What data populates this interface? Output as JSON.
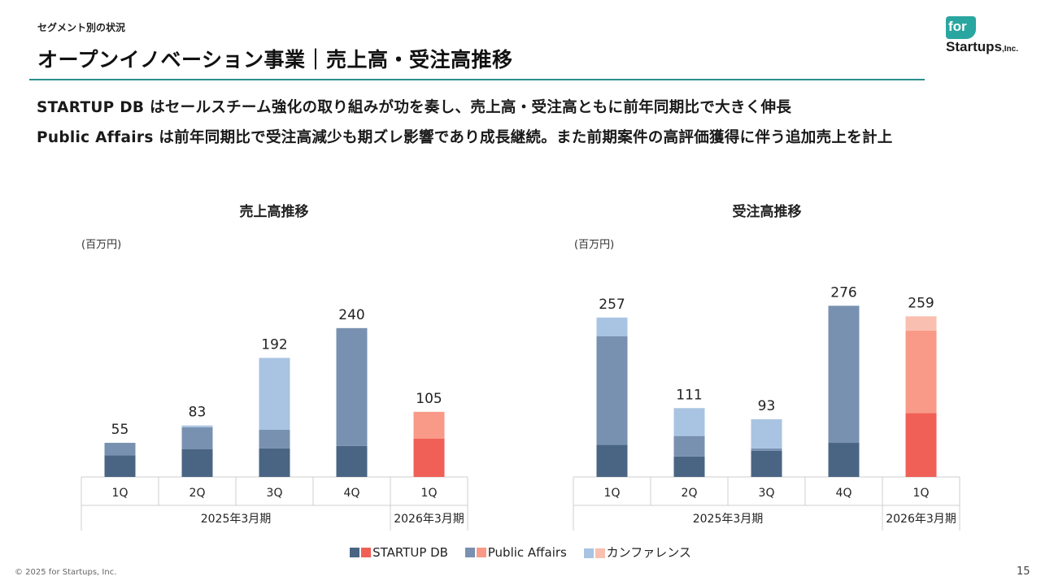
{
  "header": {
    "section": "セグメント別の状況",
    "title": "オープンイノベーション事業｜売上高・受注高推移"
  },
  "logo": {
    "top": "for",
    "bottom": "Startups",
    "suffix": ",Inc."
  },
  "messages": [
    "STARTUP DB はセールスチーム強化の取り組みが功を奏し、売上高・受注高ともに前年同期比で大きく伸長",
    "Public Affairs は前年同期比で受注高減少も期ズレ影響であり成長継続。また前期案件の高評価獲得に伴う追加売上を計上"
  ],
  "colors": {
    "startup_db_past": "#4a6584",
    "public_affairs_past": "#7891b0",
    "conference_past": "#a9c4e2",
    "startup_db_current": "#f06056",
    "public_affairs_current": "#f99a88",
    "conference_current": "#f9bfb0"
  },
  "legend": [
    "STARTUP DB",
    "Public Affairs",
    "カンファレンス"
  ],
  "footer": {
    "copyright": "© 2025 for Startups, Inc.",
    "page": "15"
  },
  "chart_data": [
    {
      "type": "bar",
      "stacked": true,
      "title": "売上高推移",
      "unit": "(百万円)",
      "categories": [
        "1Q",
        "2Q",
        "3Q",
        "4Q",
        "1Q"
      ],
      "fiscal_groups": [
        {
          "label": "2025年3月期",
          "count": 4
        },
        {
          "label": "2026年3月期",
          "count": 1
        }
      ],
      "ylim": [
        0,
        300
      ],
      "series": [
        {
          "name": "STARTUP DB",
          "values": [
            35,
            45,
            46,
            50,
            62
          ]
        },
        {
          "name": "Public Affairs",
          "values": [
            20,
            35,
            30,
            190,
            43
          ]
        },
        {
          "name": "カンファレンス",
          "values": [
            0,
            3,
            116,
            0,
            0
          ]
        }
      ],
      "totals": [
        55,
        83,
        192,
        240,
        105
      ]
    },
    {
      "type": "bar",
      "stacked": true,
      "title": "受注高推移",
      "unit": "(百万円)",
      "categories": [
        "1Q",
        "2Q",
        "3Q",
        "4Q",
        "1Q"
      ],
      "fiscal_groups": [
        {
          "label": "2025年3月期",
          "count": 4
        },
        {
          "label": "2026年3月期",
          "count": 1
        }
      ],
      "ylim": [
        0,
        300
      ],
      "series": [
        {
          "name": "STARTUP DB",
          "values": [
            52,
            33,
            42,
            55,
            103
          ]
        },
        {
          "name": "Public Affairs",
          "values": [
            175,
            33,
            4,
            221,
            133
          ]
        },
        {
          "name": "カンファレンス",
          "values": [
            30,
            45,
            47,
            0,
            23
          ]
        }
      ],
      "totals": [
        257,
        111,
        93,
        276,
        259
      ]
    }
  ]
}
